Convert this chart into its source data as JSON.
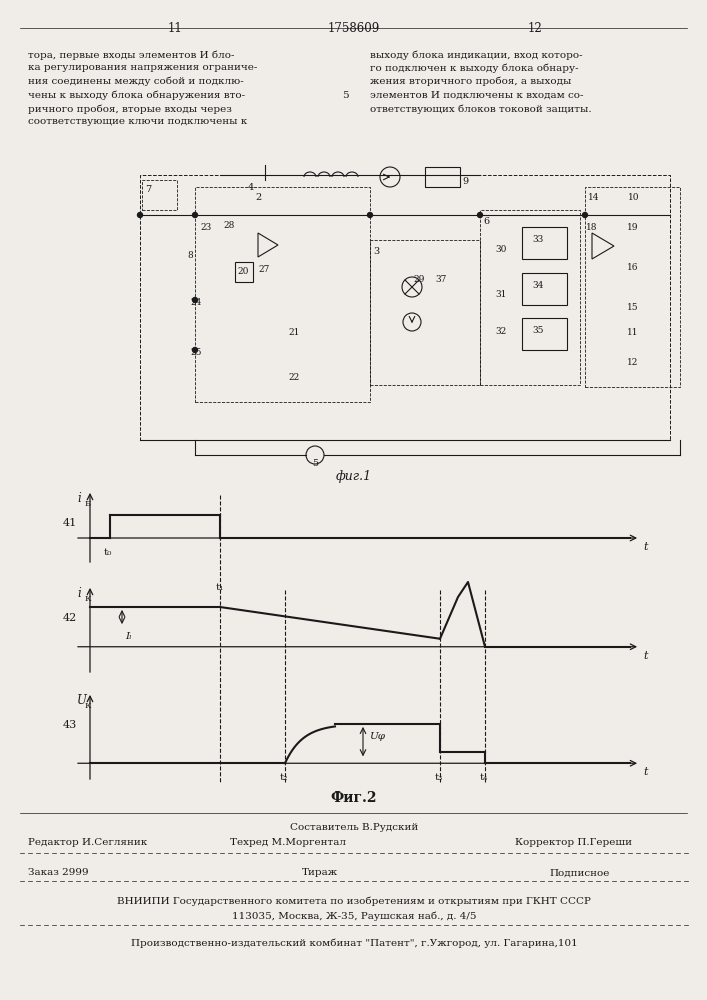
{
  "page_num_left": "11",
  "page_num_center": "1758609",
  "page_num_right": "12",
  "col_number": "5",
  "text_left": "тора, первые входы элементов И бло-\nка регулирования напряжения ограниче-\nния соединены между собой и подклю-\nчены к выходу блока обнаружения вто-\nричного пробоя, вторые входы через\nсоответствующие ключи подключены к",
  "text_right": "выходу блока индикации, вход которо-\nго подключен к выходу блока обнару-\nжения вторичного пробоя, а выходы\nэлементов И подключены к входам со-\nответствующих блоков токовой защиты.",
  "fig1_label": "фиг.1",
  "fig2_label": "Фиг.2",
  "graph1_ylabel": "i",
  "graph1_ylabel_sub": "Б",
  "graph1_number": "41",
  "graph1_t0": "t₀",
  "graph1_t1": "t₁",
  "graph2_ylabel": "i",
  "graph2_ylabel_sub": "К",
  "graph2_number": "42",
  "graph2_IL": "Iₗ",
  "graph3_ylabel": "U",
  "graph3_ylabel_sub": "К",
  "graph3_number": "43",
  "graph3_Uphi": "Uφ",
  "graph3_t2": "t₂",
  "graph3_t3": "t₃",
  "graph3_t4": "t₄",
  "t_label": "t",
  "footer_editor": "Редактор И.Сегляник",
  "footer_compiler_label": "Составитель В.Рудский",
  "footer_techred_label": "Техред М.Моргентал",
  "footer_corrector": "Корректор П.Гереши",
  "footer_order": "Заказ 2999",
  "footer_tirazh": "Тираж",
  "footer_podpisnoe": "Подписное",
  "footer_vniip1": "ВНИИПИ Государственного комитета по изобретениям и открытиям при ГКНТ СССР",
  "footer_vniip2": "113035, Москва, Ж-35, Раушская наб., д. 4/5",
  "footer_patent": "Производственно-издательский комбинат \"Патент\", г.Ужгород, ул. Гагарина,101",
  "bg_color": "#f0ede8",
  "text_color": "#1a1a1a",
  "line_color": "#1a1a1a"
}
